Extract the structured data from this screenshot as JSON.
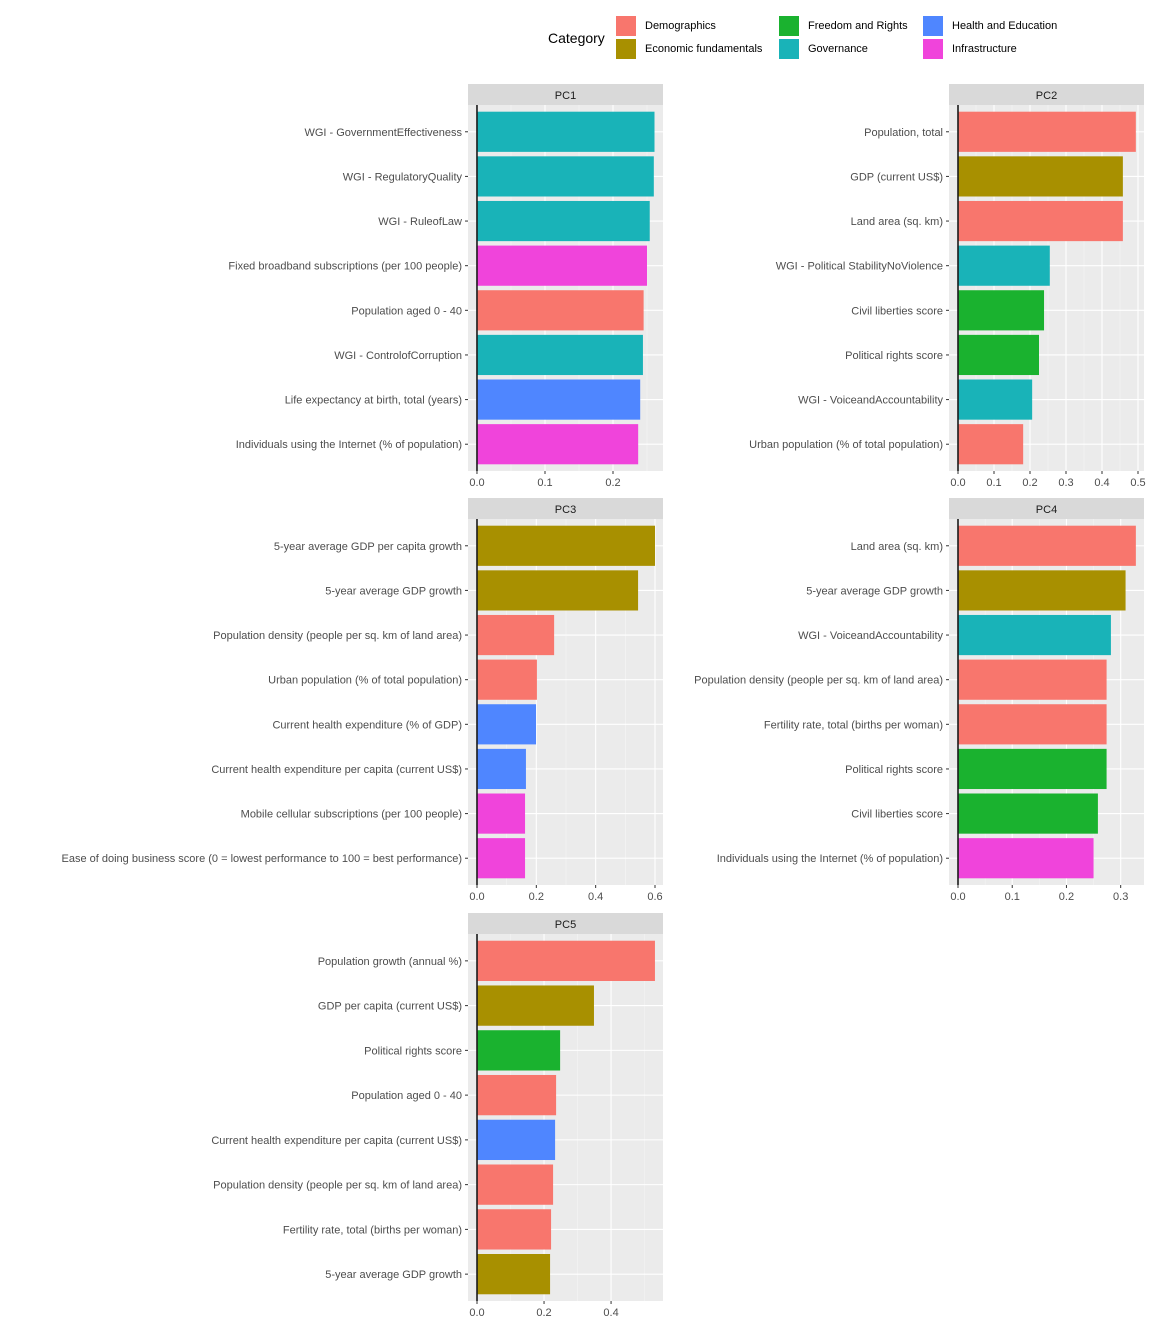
{
  "chart_data": {
    "type": "bar",
    "orientation": "horizontal",
    "facet": "wrap",
    "legend": {
      "title": "Category",
      "position": "top",
      "entries": [
        {
          "name": "Demographics",
          "color": "#F8766D"
        },
        {
          "name": "Economic fundamentals",
          "color": "#A89000"
        },
        {
          "name": "Freedom and Rights",
          "color": "#1AB22F"
        },
        {
          "name": "Governance",
          "color": "#19B3B8"
        },
        {
          "name": "Health and Education",
          "color": "#4F86FF"
        },
        {
          "name": "Infrastructure",
          "color": "#F044DB"
        }
      ]
    },
    "grid": true,
    "panels": [
      {
        "title": "PC1",
        "xlim": [
          -0.0132,
          0.2735
        ],
        "xticks": [
          0.0,
          0.1,
          0.2
        ],
        "xtick_labels": [
          "0.0",
          "0.1",
          "0.2"
        ],
        "bars": [
          {
            "label": "WGI - GovernmentEffectiveness",
            "value": 0.261,
            "category": "Governance"
          },
          {
            "label": "WGI - RegulatoryQuality",
            "value": 0.26,
            "category": "Governance"
          },
          {
            "label": "WGI - RuleofLaw",
            "value": 0.254,
            "category": "Governance"
          },
          {
            "label": "Fixed broadband subscriptions (per 100 people)",
            "value": 0.25,
            "category": "Infrastructure"
          },
          {
            "label": "Population aged 0 - 40",
            "value": 0.245,
            "category": "Demographics"
          },
          {
            "label": "WGI - ControlofCorruption",
            "value": 0.244,
            "category": "Governance"
          },
          {
            "label": "Life expectancy at birth, total (years)",
            "value": 0.24,
            "category": "Health and Education"
          },
          {
            "label": "Individuals using the Internet (% of population)",
            "value": 0.237,
            "category": "Infrastructure"
          }
        ]
      },
      {
        "title": "PC2",
        "xlim": [
          -0.025,
          0.5167
        ],
        "xticks": [
          0.0,
          0.1,
          0.2,
          0.3,
          0.4,
          0.5
        ],
        "xtick_labels": [
          "0.0",
          "0.1",
          "0.2",
          "0.3",
          "0.4",
          "0.5"
        ],
        "bars": [
          {
            "label": "Population, total",
            "value": 0.494,
            "category": "Demographics"
          },
          {
            "label": "GDP (current US$)",
            "value": 0.458,
            "category": "Economic fundamentals"
          },
          {
            "label": "Land area (sq. km)",
            "value": 0.458,
            "category": "Demographics"
          },
          {
            "label": "WGI - Political StabilityNoViolence",
            "value": 0.255,
            "category": "Governance"
          },
          {
            "label": "Civil liberties score",
            "value": 0.239,
            "category": "Freedom and Rights"
          },
          {
            "label": "Political rights score",
            "value": 0.225,
            "category": "Freedom and Rights"
          },
          {
            "label": "WGI - VoiceandAccountability",
            "value": 0.206,
            "category": "Governance"
          },
          {
            "label": "Urban population (% of total population)",
            "value": 0.181,
            "category": "Demographics"
          }
        ]
      },
      {
        "title": "PC3",
        "xlim": [
          -0.0303,
          0.627
        ],
        "xticks": [
          0.0,
          0.2,
          0.4,
          0.6
        ],
        "xtick_labels": [
          "0.0",
          "0.2",
          "0.4",
          "0.6"
        ],
        "bars": [
          {
            "label": "5-year average GDP per capita growth",
            "value": 0.6,
            "category": "Economic fundamentals"
          },
          {
            "label": "5-year average GDP growth",
            "value": 0.543,
            "category": "Economic fundamentals"
          },
          {
            "label": "Population density (people per sq. km of land area)",
            "value": 0.26,
            "category": "Demographics"
          },
          {
            "label": "Urban population (% of total population)",
            "value": 0.202,
            "category": "Demographics"
          },
          {
            "label": "Current health expenditure (% of GDP)",
            "value": 0.199,
            "category": "Health and Education"
          },
          {
            "label": "Current health expenditure per capita (current US$)",
            "value": 0.165,
            "category": "Health and Education"
          },
          {
            "label": "Mobile cellular subscriptions (per 100 people)",
            "value": 0.162,
            "category": "Infrastructure"
          },
          {
            "label": "Ease of doing business score (0 = lowest performance to 100 = best performance)",
            "value": 0.162,
            "category": "Infrastructure"
          }
        ]
      },
      {
        "title": "PC4",
        "xlim": [
          -0.0166,
          0.343
        ],
        "xticks": [
          0.0,
          0.1,
          0.2,
          0.3
        ],
        "xtick_labels": [
          "0.0",
          "0.1",
          "0.2",
          "0.3"
        ],
        "bars": [
          {
            "label": "Land area (sq. km)",
            "value": 0.328,
            "category": "Demographics"
          },
          {
            "label": "5-year average GDP growth",
            "value": 0.309,
            "category": "Economic fundamentals"
          },
          {
            "label": "WGI - VoiceandAccountability",
            "value": 0.282,
            "category": "Governance"
          },
          {
            "label": "Population density (people per sq. km of land area)",
            "value": 0.274,
            "category": "Demographics"
          },
          {
            "label": "Fertility rate, total (births per woman)",
            "value": 0.274,
            "category": "Demographics"
          },
          {
            "label": "Political rights score",
            "value": 0.274,
            "category": "Freedom and Rights"
          },
          {
            "label": "Civil liberties score",
            "value": 0.258,
            "category": "Freedom and Rights"
          },
          {
            "label": "Individuals using the Internet (% of population)",
            "value": 0.25,
            "category": "Infrastructure"
          }
        ]
      },
      {
        "title": "PC5",
        "xlim": [
          -0.0269,
          0.555
        ],
        "xticks": [
          0.0,
          0.2,
          0.4
        ],
        "xtick_labels": [
          "0.0",
          "0.2",
          "0.4"
        ],
        "bars": [
          {
            "label": "Population growth (annual %)",
            "value": 0.531,
            "category": "Demographics"
          },
          {
            "label": "GDP per capita (current US$)",
            "value": 0.349,
            "category": "Economic fundamentals"
          },
          {
            "label": "Political rights score",
            "value": 0.248,
            "category": "Freedom and Rights"
          },
          {
            "label": "Population aged 0 - 40",
            "value": 0.236,
            "category": "Demographics"
          },
          {
            "label": "Current health expenditure per capita (current US$)",
            "value": 0.233,
            "category": "Health and Education"
          },
          {
            "label": "Population density (people per sq. km of land area)",
            "value": 0.227,
            "category": "Demographics"
          },
          {
            "label": "Fertility rate, total (births per woman)",
            "value": 0.221,
            "category": "Demographics"
          },
          {
            "label": "5-year average GDP growth",
            "value": 0.218,
            "category": "Economic fundamentals"
          }
        ]
      }
    ]
  }
}
